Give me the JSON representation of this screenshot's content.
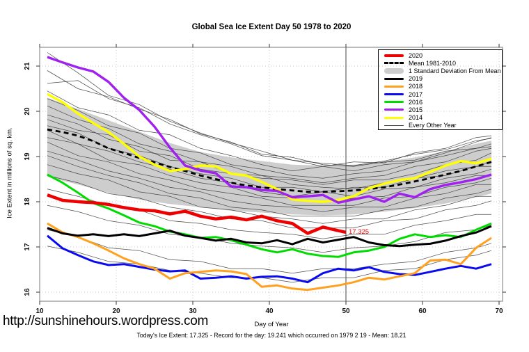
{
  "header": {
    "title": "Global Sea Ice Extent Day 50 1978 to 2020"
  },
  "footer": {
    "url": "http://sunshinehours.wordpress.com",
    "summary": "Today's Ice Extent: 17.325  - Record for the day: 19.241 which occurred on 1979 2 19  - Mean: 18.21"
  },
  "chart_data": {
    "type": "line",
    "title": "Global Sea Ice Extent Day 50 1978 to 2020",
    "xlabel": "Day of Year",
    "ylabel": "Ice Extent in millions of sq. km.",
    "xlim": [
      10,
      70
    ],
    "ylim": [
      15.8,
      21.4
    ],
    "x_ticks": [
      10,
      20,
      30,
      40,
      50,
      60,
      70
    ],
    "y_ticks": [
      16,
      17,
      18,
      19,
      20,
      21
    ],
    "grid": "dotted",
    "legend_position": "top-right",
    "marker_day": 50,
    "annotation": {
      "text": "17.325",
      "day": 50,
      "value": 17.34,
      "color": "#ee0000"
    },
    "days": [
      11,
      13,
      15,
      17,
      19,
      21,
      23,
      25,
      27,
      29,
      31,
      33,
      35,
      37,
      39,
      41,
      43,
      45,
      47,
      49,
      51,
      53,
      55,
      57,
      59,
      61,
      63,
      65,
      67,
      69
    ],
    "series": [
      {
        "name": "Mean 1981-2010",
        "color": "#000000",
        "width": 2.8,
        "dash": "7,5",
        "values": [
          19.6,
          19.54,
          19.46,
          19.34,
          19.18,
          19.08,
          18.97,
          18.87,
          18.77,
          18.68,
          18.58,
          18.5,
          18.42,
          18.36,
          18.32,
          18.28,
          18.25,
          18.22,
          18.22,
          18.23,
          18.25,
          18.28,
          18.32,
          18.38,
          18.45,
          18.52,
          18.6,
          18.68,
          18.78,
          18.88
        ]
      },
      {
        "name": "2014",
        "color": "#ffff00",
        "width": 3.4,
        "values": [
          20.38,
          20.2,
          19.95,
          19.74,
          19.54,
          19.28,
          19.0,
          18.82,
          18.68,
          18.72,
          18.8,
          18.78,
          18.62,
          18.58,
          18.44,
          18.28,
          18.05,
          18.02,
          18.0,
          18.04,
          18.12,
          18.3,
          18.4,
          18.48,
          18.52,
          18.66,
          18.8,
          18.9,
          18.85,
          18.95
        ]
      },
      {
        "name": "2015",
        "color": "#a020f0",
        "width": 3.4,
        "values": [
          21.2,
          21.08,
          20.97,
          20.88,
          20.65,
          20.3,
          20.03,
          19.66,
          19.2,
          18.8,
          18.69,
          18.63,
          18.34,
          18.32,
          18.26,
          18.24,
          18.1,
          18.12,
          18.15,
          17.98,
          18.05,
          18.12,
          18.0,
          18.18,
          18.1,
          18.28,
          18.37,
          18.43,
          18.5,
          18.6
        ]
      },
      {
        "name": "2016",
        "color": "#00db00",
        "width": 3,
        "values": [
          18.6,
          18.42,
          18.2,
          17.97,
          17.85,
          17.7,
          17.54,
          17.46,
          17.34,
          17.28,
          17.2,
          17.22,
          17.15,
          17.05,
          16.95,
          16.88,
          16.95,
          16.85,
          16.8,
          16.78,
          16.88,
          16.92,
          17.0,
          17.18,
          17.28,
          17.22,
          17.26,
          17.22,
          17.38,
          17.52
        ]
      },
      {
        "name": "2017",
        "color": "#0a0af0",
        "width": 3,
        "values": [
          17.25,
          16.97,
          16.82,
          16.68,
          16.6,
          16.62,
          16.56,
          16.5,
          16.46,
          16.48,
          16.3,
          16.32,
          16.35,
          16.3,
          16.34,
          16.35,
          16.3,
          16.22,
          16.42,
          16.52,
          16.48,
          16.55,
          16.45,
          16.4,
          16.38,
          16.45,
          16.52,
          16.58,
          16.52,
          16.62
        ]
      },
      {
        "name": "2018",
        "color": "#ffa01e",
        "width": 3,
        "values": [
          17.52,
          17.32,
          17.22,
          17.08,
          16.92,
          16.75,
          16.62,
          16.52,
          16.3,
          16.42,
          16.45,
          16.48,
          16.46,
          16.4,
          16.12,
          16.15,
          16.08,
          16.05,
          16.1,
          16.15,
          16.22,
          16.32,
          16.28,
          16.35,
          16.42,
          16.7,
          16.72,
          16.62,
          16.98,
          17.2
        ]
      },
      {
        "name": "2019",
        "color": "#000000",
        "width": 3,
        "values": [
          17.42,
          17.3,
          17.25,
          17.28,
          17.24,
          17.28,
          17.24,
          17.3,
          17.36,
          17.25,
          17.2,
          17.14,
          17.18,
          17.1,
          17.08,
          17.15,
          17.06,
          17.18,
          17.1,
          17.16,
          17.22,
          17.1,
          17.04,
          17.02,
          17.05,
          17.07,
          17.14,
          17.24,
          17.32,
          17.46
        ]
      },
      {
        "name": "2020",
        "color": "#ee0000",
        "width": 4.5,
        "days": [
          11,
          13,
          15,
          17,
          19,
          21,
          23,
          25,
          27,
          29,
          31,
          33,
          35,
          37,
          39,
          41,
          43,
          45,
          47,
          49,
          50
        ],
        "values": [
          18.15,
          18.03,
          18.0,
          17.98,
          17.94,
          17.87,
          17.82,
          17.8,
          17.73,
          17.79,
          17.68,
          17.62,
          17.66,
          17.6,
          17.68,
          17.58,
          17.52,
          17.3,
          17.44,
          17.36,
          17.325
        ]
      }
    ],
    "band": {
      "label": "1 Standard Deviation From Mean",
      "color": "#cdcdcd",
      "days": [
        11,
        15,
        19,
        23,
        27,
        31,
        35,
        39,
        43,
        47,
        51,
        55,
        59,
        63,
        67,
        69
      ],
      "top": [
        20.3,
        20.05,
        19.8,
        19.55,
        19.3,
        19.1,
        18.98,
        18.9,
        18.82,
        18.8,
        18.82,
        18.88,
        18.98,
        19.12,
        19.28,
        19.35
      ],
      "bottom": [
        18.55,
        18.38,
        18.2,
        18.05,
        17.95,
        17.88,
        17.8,
        17.76,
        17.72,
        17.7,
        17.72,
        17.78,
        17.86,
        17.96,
        18.1,
        18.18
      ]
    },
    "background_years": {
      "label": "Every Other Year",
      "color": "#3a3a3a",
      "width": 0.75,
      "days": [
        11,
        15,
        19,
        23,
        27,
        31,
        35,
        39,
        43,
        47,
        51,
        55,
        59,
        63,
        67,
        69
      ],
      "lines": [
        [
          21.3,
          20.85,
          20.35,
          20.15,
          19.78,
          19.52,
          19.3,
          19.12,
          18.92,
          18.85,
          18.8,
          18.9,
          19.05,
          19.15,
          19.35,
          19.4
        ],
        [
          20.9,
          20.5,
          20.32,
          20.05,
          19.82,
          19.5,
          19.32,
          19.05,
          18.98,
          18.82,
          18.78,
          18.88,
          18.92,
          19.12,
          19.18,
          19.28
        ],
        [
          20.62,
          20.68,
          20.28,
          20.08,
          19.72,
          19.48,
          19.28,
          19.02,
          18.92,
          18.78,
          18.88,
          18.86,
          19.08,
          19.18,
          19.42,
          19.46
        ],
        [
          20.45,
          20.08,
          19.92,
          19.58,
          19.48,
          19.18,
          19.02,
          18.82,
          18.68,
          18.78,
          18.68,
          18.82,
          18.88,
          19.02,
          19.18,
          19.22
        ],
        [
          20.28,
          20.02,
          19.68,
          19.52,
          19.18,
          19.08,
          18.82,
          18.72,
          18.58,
          18.52,
          18.62,
          18.68,
          18.88,
          19.08,
          19.32,
          19.42
        ],
        [
          20.12,
          19.82,
          19.62,
          19.28,
          19.12,
          18.88,
          18.78,
          18.58,
          18.52,
          18.42,
          18.52,
          18.58,
          18.78,
          18.88,
          19.12,
          19.18
        ],
        [
          19.92,
          19.72,
          19.38,
          19.22,
          18.92,
          18.88,
          18.62,
          18.52,
          18.48,
          18.38,
          18.48,
          18.48,
          18.62,
          18.82,
          18.92,
          19.08
        ],
        [
          19.82,
          19.58,
          19.48,
          19.12,
          19.02,
          18.72,
          18.62,
          18.58,
          18.38,
          18.32,
          18.28,
          18.42,
          18.52,
          18.68,
          18.78,
          18.88
        ],
        [
          19.68,
          19.52,
          19.18,
          19.02,
          18.78,
          18.62,
          18.52,
          18.32,
          18.32,
          18.22,
          18.32,
          18.32,
          18.52,
          18.58,
          18.78,
          18.78
        ],
        [
          19.58,
          19.28,
          19.12,
          18.88,
          18.72,
          18.52,
          18.42,
          18.22,
          18.12,
          18.22,
          18.12,
          18.28,
          18.32,
          18.52,
          18.62,
          18.72
        ],
        [
          19.42,
          19.28,
          18.92,
          18.82,
          18.58,
          18.42,
          18.32,
          18.12,
          18.08,
          17.98,
          18.08,
          18.12,
          18.32,
          18.42,
          18.58,
          18.58
        ],
        [
          19.32,
          19.02,
          18.88,
          18.62,
          18.48,
          18.28,
          18.18,
          18.08,
          17.92,
          17.92,
          17.92,
          18.08,
          18.12,
          18.32,
          18.42,
          18.52
        ],
        [
          19.12,
          18.92,
          18.68,
          18.52,
          18.32,
          18.22,
          18.02,
          17.92,
          17.88,
          17.78,
          17.88,
          17.88,
          18.08,
          18.18,
          18.38,
          18.38
        ],
        [
          19.02,
          18.78,
          18.58,
          18.42,
          18.18,
          18.08,
          17.88,
          17.82,
          17.68,
          17.68,
          17.68,
          17.82,
          17.88,
          18.08,
          18.18,
          18.28
        ],
        [
          18.82,
          18.62,
          18.48,
          18.22,
          18.12,
          17.88,
          17.82,
          17.68,
          17.62,
          17.52,
          17.62,
          17.62,
          17.82,
          17.92,
          18.12,
          18.12
        ],
        [
          18.58,
          18.42,
          18.18,
          18.08,
          17.88,
          17.78,
          17.62,
          17.58,
          17.42,
          17.42,
          17.42,
          17.58,
          17.62,
          17.82,
          17.92,
          18.02
        ],
        [
          18.28,
          18.12,
          17.92,
          17.82,
          17.58,
          17.52,
          17.38,
          17.32,
          17.28,
          17.18,
          17.28,
          17.28,
          17.48,
          17.58,
          17.72,
          17.72
        ],
        [
          17.92,
          17.78,
          17.58,
          17.48,
          17.28,
          17.22,
          17.08,
          17.02,
          16.98,
          16.88,
          16.98,
          17.02,
          17.12,
          17.32,
          17.38,
          17.48
        ],
        [
          17.38,
          17.22,
          16.98,
          16.92,
          16.72,
          16.68,
          16.52,
          16.52,
          16.42,
          16.52,
          16.52,
          16.62,
          16.68,
          16.88,
          16.98,
          17.08
        ],
        [
          17.02,
          16.88,
          16.68,
          16.62,
          16.48,
          16.42,
          16.32,
          16.32,
          16.22,
          16.32,
          16.32,
          16.48,
          16.52,
          16.72,
          16.82,
          16.92
        ]
      ]
    },
    "legend": {
      "items": [
        {
          "label": "2020",
          "kind": "line",
          "color": "#ee0000",
          "height": 4
        },
        {
          "label": "Mean 1981-2010",
          "kind": "dashed",
          "color": "#000000",
          "height": 3
        },
        {
          "label": "1 Standard Deviation From Mean",
          "kind": "band",
          "color": "#cdcdcd"
        },
        {
          "label": "2019",
          "kind": "line",
          "color": "#000000",
          "height": 3
        },
        {
          "label": "2018",
          "kind": "line",
          "color": "#ffa01e",
          "height": 3
        },
        {
          "label": "2017",
          "kind": "line",
          "color": "#0a0af0",
          "height": 3
        },
        {
          "label": "2016",
          "kind": "line",
          "color": "#00db00",
          "height": 3
        },
        {
          "label": "2015",
          "kind": "line",
          "color": "#a020f0",
          "height": 3
        },
        {
          "label": "2014",
          "kind": "line",
          "color": "#ffff00",
          "height": 3
        },
        {
          "label": "Every Other Year",
          "kind": "line",
          "color": "#444444",
          "height": 1
        }
      ]
    },
    "colors": {
      "grid": "#c8c8c8",
      "border": "#777777",
      "tick": "#333333",
      "marker_line": "#444444"
    }
  }
}
